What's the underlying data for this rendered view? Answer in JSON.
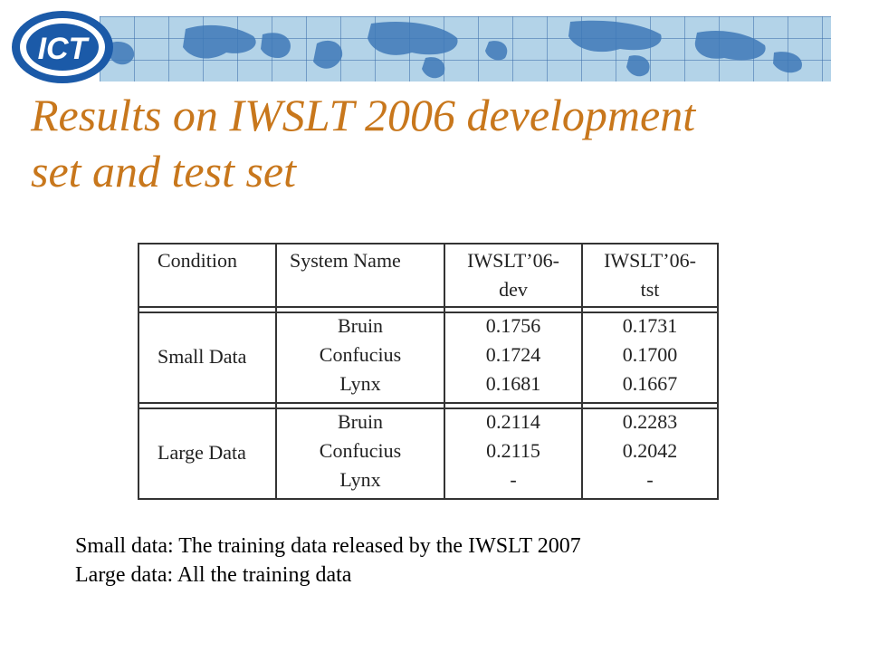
{
  "slide": {
    "title_line1": "Results on IWSLT 2006 development",
    "title_line2": "set and test set"
  },
  "logo": {
    "text": "ICT"
  },
  "table": {
    "header": {
      "condition": "Condition",
      "system": "System Name",
      "dev_line1": "IWSLT’06-",
      "dev_line2": "dev",
      "tst_line1": "IWSLT’06-",
      "tst_line2": "tst"
    },
    "groups": [
      {
        "condition": "Small Data",
        "rows": [
          {
            "system": "Bruin",
            "dev": "0.1756",
            "tst": "0.1731"
          },
          {
            "system": "Confucius",
            "dev": "0.1724",
            "tst": "0.1700"
          },
          {
            "system": "Lynx",
            "dev": "0.1681",
            "tst": "0.1667"
          }
        ]
      },
      {
        "condition": "Large Data",
        "rows": [
          {
            "system": "Bruin",
            "dev": "0.2114",
            "tst": "0.2283"
          },
          {
            "system": "Confucius",
            "dev": "0.2115",
            "tst": "0.2042"
          },
          {
            "system": "Lynx",
            "dev": "-",
            "tst": "-"
          }
        ]
      }
    ]
  },
  "notes": [
    "Small data: The training data released by the IWSLT 2007",
    "Large data: All the training data"
  ],
  "colors": {
    "title": "#c8771c",
    "logo_blue": "#1b5aa8",
    "banner": "#b3d3e8"
  }
}
